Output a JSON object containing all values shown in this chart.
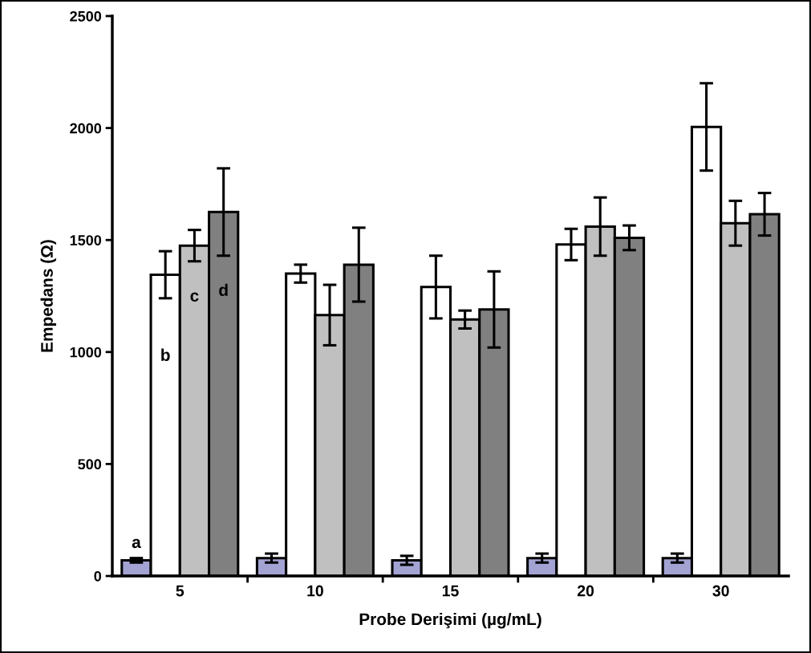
{
  "chart_data": {
    "type": "bar",
    "xlabel": "Probe Derişimi (µg/mL)",
    "ylabel": "Empedans (Ω)",
    "categories": [
      "5",
      "10",
      "15",
      "20",
      "30"
    ],
    "series": [
      {
        "name": "a",
        "color": "#a3a3d3",
        "values": [
          70,
          80,
          70,
          80,
          80
        ],
        "errors": [
          10,
          20,
          20,
          20,
          20
        ]
      },
      {
        "name": "b",
        "color": "#ffffff",
        "values": [
          1345,
          1350,
          1290,
          1480,
          2005
        ],
        "errors": [
          105,
          40,
          140,
          70,
          195
        ]
      },
      {
        "name": "c",
        "color": "#c0c0c0",
        "values": [
          1475,
          1165,
          1145,
          1560,
          1575
        ],
        "errors": [
          70,
          135,
          40,
          130,
          100
        ]
      },
      {
        "name": "d",
        "color": "#808080",
        "values": [
          1625,
          1390,
          1190,
          1510,
          1615
        ],
        "errors": [
          195,
          165,
          170,
          55,
          95
        ]
      }
    ],
    "ylim": [
      0,
      2500
    ],
    "yticks": [
      0,
      500,
      1000,
      1500,
      2000,
      2500
    ],
    "grid": false,
    "legend": false
  }
}
